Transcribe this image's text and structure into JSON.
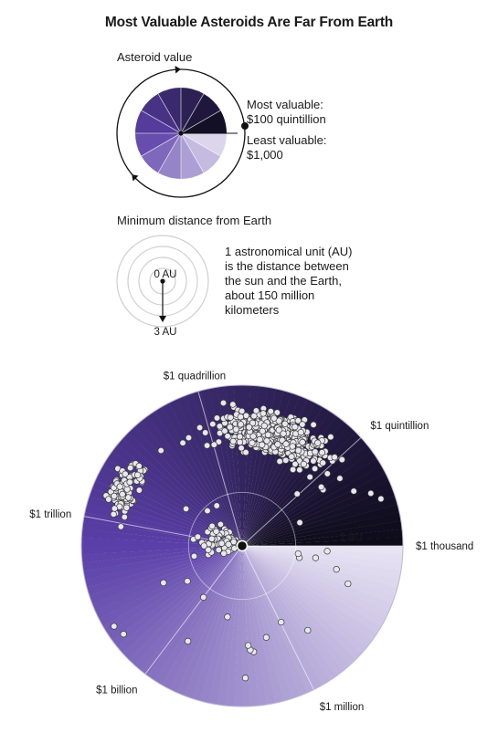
{
  "title": "Most Valuable Asteroids Are Far From Earth",
  "legend": {
    "value_heading": "Asteroid value",
    "most_valuable": "Most valuable:",
    "most_valuable_amount": "$100 quintillion",
    "least_valuable": "Least valuable:",
    "least_valuable_amount": "$1,000",
    "distance_heading": "Minimum distance from Earth",
    "center_label": "0 AU",
    "outer_label": "3 AU",
    "au_note": [
      "1 astronomical unit (AU)",
      "is the distance between",
      "the sun and the Earth,",
      "about 150 million",
      "kilometers"
    ]
  },
  "colors": {
    "dark": "#0d0b18",
    "mid": "#5a3fa8",
    "light": "#e8e4f3",
    "dot_fill": "#e9e7ee",
    "dot_stroke": "#3a3a3a"
  },
  "chart_data": {
    "type": "scatter",
    "description_mode": "polar",
    "angle_variable": "asteroid value (log scale, $1 thousand to $100 quintillion)",
    "radius_variable": "minimum distance from Earth (AU, 0 to 3)",
    "angle_labels": [
      {
        "label": "$1 thousand",
        "log10_value": 3
      },
      {
        "label": "$1 million",
        "log10_value": 6
      },
      {
        "label": "$1 billion",
        "log10_value": 9
      },
      {
        "label": "$1 trillion",
        "log10_value": 12
      },
      {
        "label": "$1 quadrillion",
        "log10_value": 15
      },
      {
        "label": "$1 quintillion",
        "log10_value": 18
      }
    ],
    "angle_range_log10": [
      3,
      20
    ],
    "radius_range": [
      0,
      3
    ],
    "radius_marks": [
      {
        "label": "1 AU",
        "value": 1
      }
    ],
    "clusters": [
      {
        "log10_value_range": [
          14.5,
          18.5
        ],
        "distance_range": [
          1.6,
          2.75
        ],
        "count": 430
      },
      {
        "log10_value_range": [
          12.0,
          13.5
        ],
        "distance_range": [
          2.0,
          2.9
        ],
        "count": 110
      },
      {
        "log10_value_range": [
          9.5,
          15.0
        ],
        "distance_range": [
          0.0,
          1.2
        ],
        "count": 190
      },
      {
        "log10_value_range": [
          3.0,
          20.0
        ],
        "distance_range": [
          0.0,
          3.0
        ],
        "count": 45
      }
    ]
  }
}
